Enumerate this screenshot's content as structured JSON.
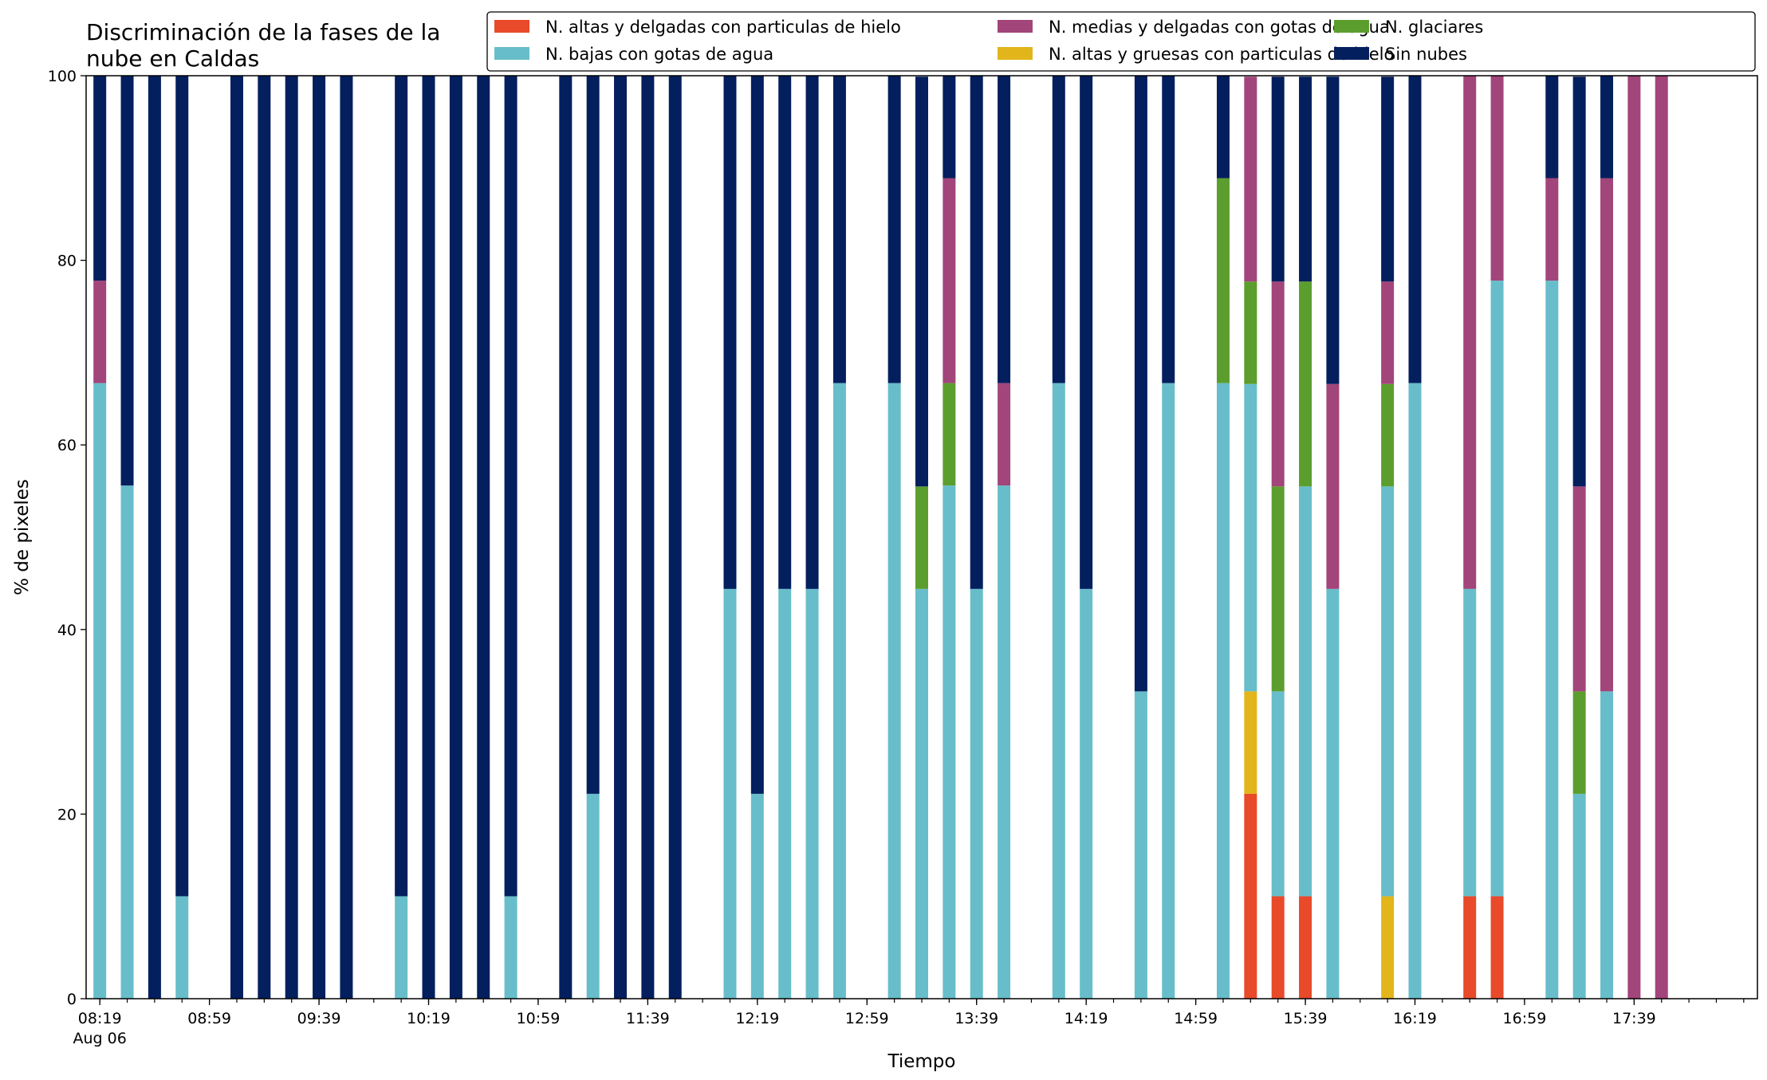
{
  "chart_data": {
    "type": "bar",
    "stacked": true,
    "title": "Discriminación de la fases de la nube en Caldas",
    "title_lines": [
      "Discriminación de la fases de la",
      "nube en Caldas"
    ],
    "xlabel": "Tiempo",
    "ylabel": "% de pixeles",
    "ylim": [
      0,
      100
    ],
    "yticks": [
      0,
      20,
      40,
      60,
      80,
      100
    ],
    "grid": false,
    "legend_position": "top-right",
    "xlim": [
      "08:14",
      "18:24"
    ],
    "date_label": "Aug 06",
    "xtick_labels": [
      "08:19",
      "08:59",
      "09:39",
      "10:19",
      "10:59",
      "11:39",
      "12:19",
      "12:59",
      "13:39",
      "14:19",
      "14:59",
      "15:39",
      "16:19",
      "16:59",
      "17:39"
    ],
    "minor_tick_interval_min": 10,
    "series": [
      {
        "name": "N. altas y delgadas con particulas de hielo",
        "color": "#e84a2a"
      },
      {
        "name": "N. altas y gruesas con particulas de hielo",
        "color": "#e2b51b"
      },
      {
        "name": "N. bajas con gotas de agua",
        "color": "#68bdca"
      },
      {
        "name": "N. glaciares",
        "color": "#5c9e2e"
      },
      {
        "name": "N. medias y delgadas con gotas de agua",
        "color": "#a2457a"
      },
      {
        "name": "Sin nubes",
        "color": "#041f5e"
      }
    ],
    "legend_order": [
      0,
      2,
      4,
      1,
      3,
      5
    ],
    "bars": [
      {
        "time": "08:19",
        "values": [
          0,
          0,
          66.7,
          0,
          11.1,
          22.2
        ]
      },
      {
        "time": "08:29",
        "values": [
          0,
          0,
          55.6,
          0,
          0,
          44.4
        ]
      },
      {
        "time": "08:39",
        "values": [
          0,
          0,
          0,
          0,
          0,
          100
        ]
      },
      {
        "time": "08:49",
        "values": [
          0,
          0,
          11.1,
          0,
          0,
          88.9
        ]
      },
      {
        "time": "09:09",
        "values": [
          0,
          0,
          0,
          0,
          0,
          100
        ]
      },
      {
        "time": "09:19",
        "values": [
          0,
          0,
          0,
          0,
          0,
          100
        ]
      },
      {
        "time": "09:29",
        "values": [
          0,
          0,
          0,
          0,
          0,
          100
        ]
      },
      {
        "time": "09:39",
        "values": [
          0,
          0,
          0,
          0,
          0,
          100
        ]
      },
      {
        "time": "09:49",
        "values": [
          0,
          0,
          0,
          0,
          0,
          100
        ]
      },
      {
        "time": "10:09",
        "values": [
          0,
          0,
          11.1,
          0,
          0,
          88.9
        ]
      },
      {
        "time": "10:19",
        "values": [
          0,
          0,
          0,
          0,
          0,
          100
        ]
      },
      {
        "time": "10:29",
        "values": [
          0,
          0,
          0,
          0,
          0,
          100
        ]
      },
      {
        "time": "10:39",
        "values": [
          0,
          0,
          0,
          0,
          0,
          100
        ]
      },
      {
        "time": "10:49",
        "values": [
          0,
          0,
          11.1,
          0,
          0,
          88.9
        ]
      },
      {
        "time": "11:09",
        "values": [
          0,
          0,
          0,
          0,
          0,
          100
        ]
      },
      {
        "time": "11:19",
        "values": [
          0,
          0,
          22.2,
          0,
          0,
          77.8
        ]
      },
      {
        "time": "11:29",
        "values": [
          0,
          0,
          0,
          0,
          0,
          100
        ]
      },
      {
        "time": "11:39",
        "values": [
          0,
          0,
          0,
          0,
          0,
          100
        ]
      },
      {
        "time": "11:49",
        "values": [
          0,
          0,
          0,
          0,
          0,
          100
        ]
      },
      {
        "time": "12:09",
        "values": [
          0,
          0,
          44.4,
          0,
          0,
          55.6
        ]
      },
      {
        "time": "12:19",
        "values": [
          0,
          0,
          22.2,
          0,
          0,
          77.8
        ]
      },
      {
        "time": "12:29",
        "values": [
          0,
          0,
          44.4,
          0,
          0,
          55.6
        ]
      },
      {
        "time": "12:39",
        "values": [
          0,
          0,
          44.4,
          0,
          0,
          55.6
        ]
      },
      {
        "time": "12:49",
        "values": [
          0,
          0,
          66.7,
          0,
          0,
          33.3
        ]
      },
      {
        "time": "13:09",
        "values": [
          0,
          0,
          66.7,
          0,
          0,
          33.3
        ]
      },
      {
        "time": "13:19",
        "values": [
          0,
          0,
          44.4,
          11.1,
          0,
          44.4
        ]
      },
      {
        "time": "13:29",
        "values": [
          0,
          0,
          55.6,
          11.1,
          22.2,
          11.1
        ]
      },
      {
        "time": "13:39",
        "values": [
          0,
          0,
          44.4,
          0,
          0,
          55.6
        ]
      },
      {
        "time": "13:49",
        "values": [
          0,
          0,
          55.6,
          0,
          11.1,
          33.3
        ]
      },
      {
        "time": "14:09",
        "values": [
          0,
          0,
          66.7,
          0,
          0,
          33.3
        ]
      },
      {
        "time": "14:19",
        "values": [
          0,
          0,
          44.4,
          0,
          0,
          55.6
        ]
      },
      {
        "time": "14:39",
        "values": [
          0,
          0,
          33.3,
          0,
          0,
          66.7
        ]
      },
      {
        "time": "14:49",
        "values": [
          0,
          0,
          66.7,
          0,
          0,
          33.3
        ]
      },
      {
        "time": "15:09",
        "values": [
          0,
          0,
          66.7,
          22.2,
          0,
          11.1
        ]
      },
      {
        "time": "15:19",
        "values": [
          22.2,
          11.1,
          33.3,
          11.1,
          22.2,
          0
        ]
      },
      {
        "time": "15:29",
        "values": [
          11.1,
          0,
          22.2,
          22.2,
          22.2,
          22.2
        ]
      },
      {
        "time": "15:39",
        "values": [
          11.1,
          0,
          44.4,
          22.2,
          0,
          22.2
        ]
      },
      {
        "time": "15:49",
        "values": [
          0,
          0,
          44.4,
          0,
          22.2,
          33.3
        ]
      },
      {
        "time": "16:09",
        "values": [
          0,
          11.1,
          44.4,
          11.1,
          11.1,
          22.2
        ]
      },
      {
        "time": "16:19",
        "values": [
          0,
          0,
          66.7,
          0,
          0,
          33.3
        ]
      },
      {
        "time": "16:39",
        "values": [
          11.1,
          0,
          33.3,
          0,
          55.6,
          0
        ]
      },
      {
        "time": "16:49",
        "values": [
          11.1,
          0,
          66.7,
          0,
          22.2,
          0
        ]
      },
      {
        "time": "17:09",
        "values": [
          0,
          0,
          77.8,
          0,
          11.1,
          11.1
        ]
      },
      {
        "time": "17:19",
        "values": [
          0,
          0,
          22.2,
          11.1,
          22.2,
          44.4
        ]
      },
      {
        "time": "17:29",
        "values": [
          0,
          0,
          33.3,
          0,
          55.6,
          11.1
        ]
      },
      {
        "time": "17:39",
        "values": [
          0,
          0,
          0,
          0,
          100,
          0
        ]
      },
      {
        "time": "17:49",
        "values": [
          0,
          0,
          0,
          0,
          100,
          0
        ]
      }
    ]
  }
}
